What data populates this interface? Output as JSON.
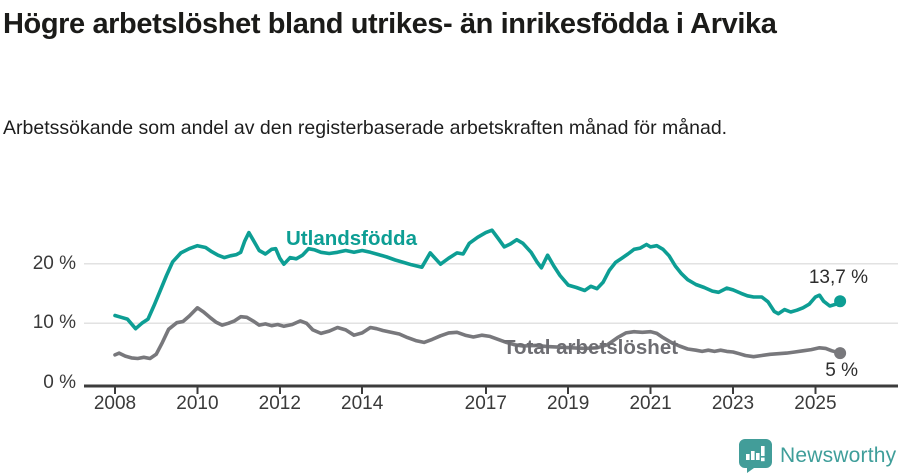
{
  "chart_data": {
    "type": "line",
    "title": "Högre arbetslöshet bland utrikes- än inrikesfödda i Arvika",
    "subtitle": "Arbetssökande som andel av den registerbaserade arbetskraften månad för månad.",
    "x_axis": {
      "ticks": [
        2008,
        2010,
        2012,
        2014,
        2017,
        2019,
        2021,
        2023,
        2025
      ],
      "range": [
        2007.9,
        2026.0
      ]
    },
    "y_axis": {
      "unit": "%",
      "ticks": [
        {
          "value": 0,
          "label": "0 %"
        },
        {
          "value": 10,
          "label": "10 %"
        },
        {
          "value": 20,
          "label": "20 %"
        }
      ],
      "range": [
        0,
        27
      ],
      "grid": true
    },
    "series": [
      {
        "name": "Utlandsfödda",
        "color": "#0d9e94",
        "end_label": "13,7 %",
        "end_value": 13.7,
        "points": [
          [
            2008.0,
            11.3
          ],
          [
            2008.15,
            11.0
          ],
          [
            2008.3,
            10.7
          ],
          [
            2008.5,
            9.1
          ],
          [
            2008.65,
            10.0
          ],
          [
            2008.8,
            10.7
          ],
          [
            2008.95,
            13.0
          ],
          [
            2009.1,
            15.5
          ],
          [
            2009.25,
            18.0
          ],
          [
            2009.4,
            20.3
          ],
          [
            2009.6,
            21.8
          ],
          [
            2009.8,
            22.5
          ],
          [
            2010.0,
            23.0
          ],
          [
            2010.2,
            22.7
          ],
          [
            2010.35,
            22.0
          ],
          [
            2010.5,
            21.4
          ],
          [
            2010.65,
            21.0
          ],
          [
            2010.8,
            21.3
          ],
          [
            2010.95,
            21.5
          ],
          [
            2011.05,
            21.9
          ],
          [
            2011.15,
            23.8
          ],
          [
            2011.25,
            25.2
          ],
          [
            2011.35,
            24.0
          ],
          [
            2011.5,
            22.2
          ],
          [
            2011.65,
            21.6
          ],
          [
            2011.8,
            22.4
          ],
          [
            2011.9,
            22.5
          ],
          [
            2012.0,
            20.9
          ],
          [
            2012.1,
            19.9
          ],
          [
            2012.25,
            21.0
          ],
          [
            2012.4,
            20.8
          ],
          [
            2012.55,
            21.4
          ],
          [
            2012.7,
            22.5
          ],
          [
            2012.85,
            22.3
          ],
          [
            2013.0,
            21.9
          ],
          [
            2013.2,
            21.7
          ],
          [
            2013.4,
            21.9
          ],
          [
            2013.6,
            22.2
          ],
          [
            2013.8,
            21.9
          ],
          [
            2014.0,
            22.2
          ],
          [
            2014.2,
            21.9
          ],
          [
            2014.4,
            21.5
          ],
          [
            2014.6,
            21.1
          ],
          [
            2014.8,
            20.6
          ],
          [
            2015.0,
            20.2
          ],
          [
            2015.2,
            19.8
          ],
          [
            2015.45,
            19.4
          ],
          [
            2015.65,
            21.8
          ],
          [
            2015.9,
            19.9
          ],
          [
            2016.1,
            20.9
          ],
          [
            2016.3,
            21.8
          ],
          [
            2016.45,
            21.6
          ],
          [
            2016.6,
            23.4
          ],
          [
            2016.8,
            24.4
          ],
          [
            2017.0,
            25.2
          ],
          [
            2017.15,
            25.6
          ],
          [
            2017.3,
            24.2
          ],
          [
            2017.45,
            22.8
          ],
          [
            2017.6,
            23.3
          ],
          [
            2017.75,
            24.0
          ],
          [
            2017.9,
            23.4
          ],
          [
            2018.1,
            21.9
          ],
          [
            2018.25,
            20.2
          ],
          [
            2018.35,
            19.3
          ],
          [
            2018.5,
            21.4
          ],
          [
            2018.65,
            19.6
          ],
          [
            2018.8,
            18.0
          ],
          [
            2019.0,
            16.4
          ],
          [
            2019.2,
            16.0
          ],
          [
            2019.4,
            15.5
          ],
          [
            2019.55,
            16.2
          ],
          [
            2019.7,
            15.8
          ],
          [
            2019.85,
            16.9
          ],
          [
            2020.0,
            18.9
          ],
          [
            2020.15,
            20.2
          ],
          [
            2020.3,
            20.9
          ],
          [
            2020.45,
            21.6
          ],
          [
            2020.6,
            22.4
          ],
          [
            2020.75,
            22.6
          ],
          [
            2020.9,
            23.2
          ],
          [
            2021.0,
            22.8
          ],
          [
            2021.15,
            23.0
          ],
          [
            2021.3,
            22.4
          ],
          [
            2021.45,
            21.3
          ],
          [
            2021.6,
            19.6
          ],
          [
            2021.75,
            18.3
          ],
          [
            2021.9,
            17.3
          ],
          [
            2022.1,
            16.5
          ],
          [
            2022.3,
            16.0
          ],
          [
            2022.5,
            15.4
          ],
          [
            2022.65,
            15.2
          ],
          [
            2022.85,
            15.9
          ],
          [
            2023.0,
            15.6
          ],
          [
            2023.2,
            15.0
          ],
          [
            2023.35,
            14.6
          ],
          [
            2023.5,
            14.4
          ],
          [
            2023.7,
            14.4
          ],
          [
            2023.85,
            13.6
          ],
          [
            2024.0,
            12.0
          ],
          [
            2024.1,
            11.6
          ],
          [
            2024.25,
            12.3
          ],
          [
            2024.4,
            11.9
          ],
          [
            2024.55,
            12.2
          ],
          [
            2024.7,
            12.6
          ],
          [
            2024.85,
            13.2
          ],
          [
            2025.0,
            14.4
          ],
          [
            2025.1,
            14.7
          ],
          [
            2025.2,
            13.7
          ],
          [
            2025.35,
            12.9
          ],
          [
            2025.5,
            13.2
          ],
          [
            2025.6,
            13.7
          ]
        ]
      },
      {
        "name": "Total arbetslöshet",
        "color": "#78787c",
        "end_label": "5 %",
        "end_value": 5,
        "points": [
          [
            2008.0,
            4.7
          ],
          [
            2008.1,
            5.0
          ],
          [
            2008.25,
            4.5
          ],
          [
            2008.4,
            4.2
          ],
          [
            2008.55,
            4.1
          ],
          [
            2008.7,
            4.3
          ],
          [
            2008.85,
            4.1
          ],
          [
            2009.0,
            4.8
          ],
          [
            2009.15,
            6.8
          ],
          [
            2009.3,
            9.0
          ],
          [
            2009.5,
            10.1
          ],
          [
            2009.65,
            10.3
          ],
          [
            2009.8,
            11.2
          ],
          [
            2010.0,
            12.6
          ],
          [
            2010.15,
            11.9
          ],
          [
            2010.3,
            11.0
          ],
          [
            2010.45,
            10.2
          ],
          [
            2010.6,
            9.7
          ],
          [
            2010.75,
            10.0
          ],
          [
            2010.9,
            10.4
          ],
          [
            2011.05,
            11.1
          ],
          [
            2011.2,
            11.0
          ],
          [
            2011.35,
            10.4
          ],
          [
            2011.5,
            9.7
          ],
          [
            2011.65,
            9.9
          ],
          [
            2011.8,
            9.6
          ],
          [
            2011.95,
            9.8
          ],
          [
            2012.1,
            9.5
          ],
          [
            2012.3,
            9.8
          ],
          [
            2012.5,
            10.4
          ],
          [
            2012.65,
            10.0
          ],
          [
            2012.8,
            8.9
          ],
          [
            2013.0,
            8.3
          ],
          [
            2013.2,
            8.7
          ],
          [
            2013.4,
            9.3
          ],
          [
            2013.6,
            8.9
          ],
          [
            2013.8,
            8.0
          ],
          [
            2014.0,
            8.4
          ],
          [
            2014.2,
            9.3
          ],
          [
            2014.35,
            9.1
          ],
          [
            2014.5,
            8.8
          ],
          [
            2014.7,
            8.5
          ],
          [
            2014.9,
            8.2
          ],
          [
            2015.1,
            7.6
          ],
          [
            2015.3,
            7.1
          ],
          [
            2015.5,
            6.8
          ],
          [
            2015.7,
            7.3
          ],
          [
            2015.9,
            7.9
          ],
          [
            2016.1,
            8.4
          ],
          [
            2016.3,
            8.5
          ],
          [
            2016.5,
            8.0
          ],
          [
            2016.7,
            7.7
          ],
          [
            2016.9,
            8.0
          ],
          [
            2017.1,
            7.8
          ],
          [
            2017.3,
            7.3
          ],
          [
            2017.5,
            6.8
          ],
          [
            2017.7,
            6.4
          ],
          [
            2017.9,
            6.2
          ],
          [
            2018.2,
            6.3
          ],
          [
            2018.5,
            6.1
          ],
          [
            2018.8,
            6.0
          ],
          [
            2019.1,
            5.9
          ],
          [
            2019.4,
            5.8
          ],
          [
            2019.7,
            5.9
          ],
          [
            2019.95,
            6.4
          ],
          [
            2020.2,
            7.6
          ],
          [
            2020.4,
            8.4
          ],
          [
            2020.6,
            8.6
          ],
          [
            2020.8,
            8.5
          ],
          [
            2021.0,
            8.6
          ],
          [
            2021.15,
            8.3
          ],
          [
            2021.3,
            7.6
          ],
          [
            2021.5,
            6.8
          ],
          [
            2021.7,
            6.2
          ],
          [
            2021.9,
            5.7
          ],
          [
            2022.1,
            5.5
          ],
          [
            2022.25,
            5.3
          ],
          [
            2022.4,
            5.5
          ],
          [
            2022.55,
            5.3
          ],
          [
            2022.7,
            5.5
          ],
          [
            2022.85,
            5.3
          ],
          [
            2023.0,
            5.2
          ],
          [
            2023.15,
            4.9
          ],
          [
            2023.3,
            4.6
          ],
          [
            2023.5,
            4.4
          ],
          [
            2023.7,
            4.6
          ],
          [
            2023.9,
            4.8
          ],
          [
            2024.1,
            4.9
          ],
          [
            2024.3,
            5.0
          ],
          [
            2024.5,
            5.2
          ],
          [
            2024.7,
            5.4
          ],
          [
            2024.9,
            5.6
          ],
          [
            2025.1,
            5.9
          ],
          [
            2025.25,
            5.8
          ],
          [
            2025.4,
            5.4
          ],
          [
            2025.6,
            5.0
          ]
        ]
      }
    ],
    "legend_position": "inline-labels",
    "colors": {
      "grid": "#e2e2e2",
      "axis": "#3c3c3c",
      "tick_text": "#3a3a3a",
      "accent_teal": "#0d9e94",
      "neutral_gray": "#78787c"
    }
  },
  "footer": {
    "brand": "Newsworthy",
    "brand_color": "#3f9e9a"
  }
}
